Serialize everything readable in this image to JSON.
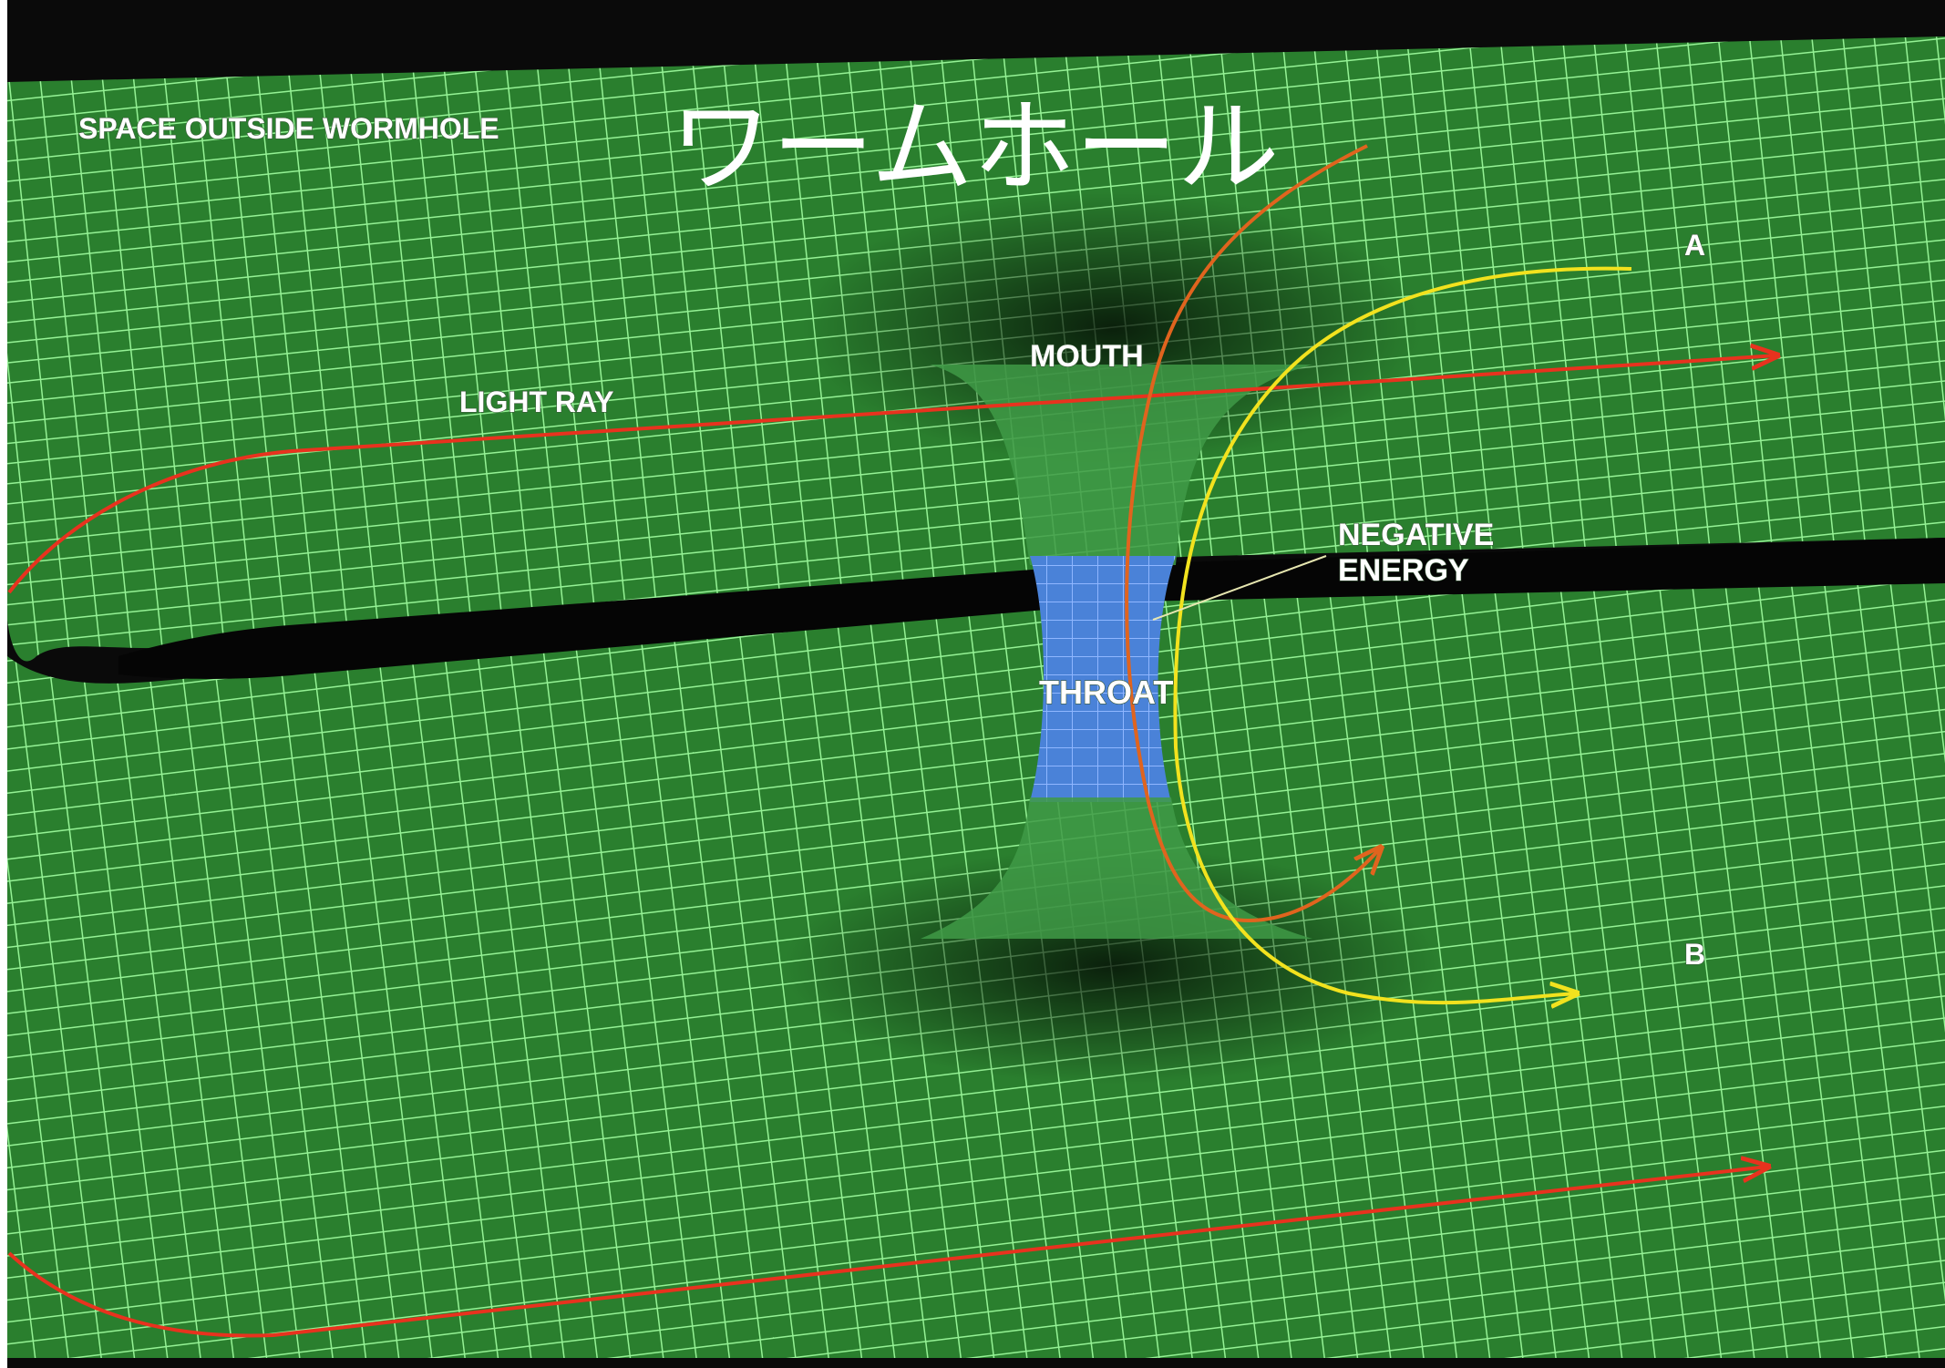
{
  "title": "ワームホール",
  "labels": {
    "space_outside": "SPACE OUTSIDE WORMHOLE",
    "light_ray": "LIGHT RAY",
    "mouth": "MOUTH",
    "negative_energy_1": "NEGATIVE",
    "negative_energy_2": "ENERGY",
    "throat": "THROAT",
    "a": "A",
    "b": "B"
  },
  "colors": {
    "background": "#0a0a0a",
    "grid_green": "#2a7a2a",
    "grid_line": "#8cf08c",
    "throat_blue": "#4a82d8",
    "light_ray_red": "#e8321e",
    "path_orange": "#e0641e",
    "path_yellow": "#f2e21e"
  }
}
